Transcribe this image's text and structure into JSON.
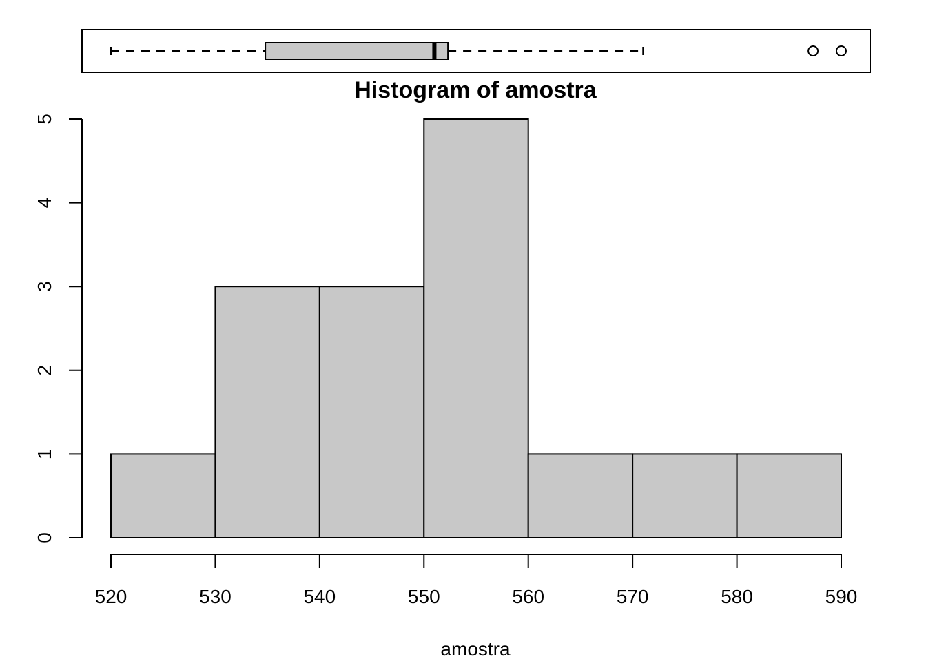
{
  "chart_data": [
    {
      "type": "boxplot",
      "orientation": "horizontal",
      "whisker_low": 520,
      "q1": 534.8,
      "median": 551,
      "q3": 552.3,
      "whisker_high": 571,
      "outliers": [
        587.3,
        590
      ],
      "xlim": [
        520,
        590
      ],
      "colors": {
        "box_fill": "#c8c8c8",
        "stroke": "#000000"
      }
    },
    {
      "type": "bar",
      "title": "Histogram of amostra",
      "xlabel": "amostra",
      "ylabel": "",
      "bins": [
        [
          520,
          530
        ],
        [
          530,
          540
        ],
        [
          540,
          550
        ],
        [
          550,
          560
        ],
        [
          560,
          570
        ],
        [
          570,
          580
        ],
        [
          580,
          590
        ]
      ],
      "values": [
        1,
        3,
        3,
        5,
        1,
        1,
        1
      ],
      "xlim": [
        520,
        590
      ],
      "ylim": [
        0,
        5
      ],
      "x_ticks": [
        520,
        530,
        540,
        550,
        560,
        570,
        580,
        590
      ],
      "y_ticks": [
        0,
        1,
        2,
        3,
        4,
        5
      ],
      "grid": false,
      "colors": {
        "bar_fill": "#c8c8c8",
        "stroke": "#000000"
      }
    }
  ]
}
